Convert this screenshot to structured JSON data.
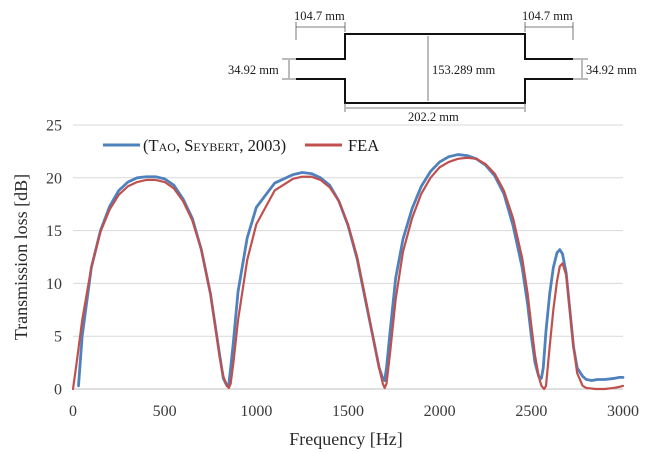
{
  "diagram": {
    "dims": {
      "inlet_length": "104.7 mm",
      "outlet_length": "104.7 mm",
      "inlet_height": "34.92 mm",
      "outlet_height": "34.92 mm",
      "chamber_height": "153.289 mm",
      "chamber_length": "202.2 mm"
    }
  },
  "chart_data": {
    "type": "line",
    "xlabel": "Frequency [Hz]",
    "ylabel": "Transmission loss [dB]",
    "xlim": [
      0,
      3000
    ],
    "ylim": [
      0,
      25
    ],
    "xticks": [
      "0",
      "500",
      "1000",
      "1500",
      "2000",
      "2500",
      "3000"
    ],
    "yticks": [
      "0",
      "5",
      "10",
      "15",
      "20",
      "25"
    ],
    "grid": "horizontal",
    "legend_position": "top-left",
    "legend_label_1_parts": {
      "open": "(",
      "author1_first": "T",
      "author1_rest": "AO",
      "sep": ", ",
      "author2_first": "S",
      "author2_rest": "EYBERT",
      "year": ", 2003)"
    },
    "series": [
      {
        "name": "(Tao, Seybert, 2003)",
        "color": "#4f81bd",
        "x": [
          30,
          50,
          100,
          150,
          200,
          250,
          300,
          350,
          400,
          450,
          500,
          550,
          600,
          650,
          700,
          750,
          780,
          800,
          820,
          840,
          850,
          860,
          875,
          900,
          950,
          1000,
          1100,
          1200,
          1250,
          1300,
          1350,
          1400,
          1450,
          1500,
          1550,
          1600,
          1640,
          1670,
          1690,
          1700,
          1710,
          1730,
          1760,
          1800,
          1850,
          1900,
          1950,
          2000,
          2050,
          2100,
          2150,
          2200,
          2250,
          2300,
          2350,
          2400,
          2450,
          2480,
          2500,
          2520,
          2540,
          2555,
          2565,
          2580,
          2600,
          2620,
          2640,
          2655,
          2670,
          2690,
          2710,
          2730,
          2750,
          2780,
          2800,
          2830,
          2860,
          2900,
          2950,
          2980,
          3000
        ],
        "y": [
          0.3,
          5,
          11.5,
          15,
          17.3,
          18.8,
          19.6,
          20.0,
          20.1,
          20.1,
          19.9,
          19.3,
          18.0,
          16.2,
          13.2,
          9.0,
          5.5,
          3.2,
          1.0,
          0.3,
          0.5,
          2.0,
          4.5,
          9.2,
          14.3,
          17.2,
          19.5,
          20.3,
          20.5,
          20.4,
          20.0,
          19.3,
          17.8,
          15.5,
          12.3,
          8.0,
          4.6,
          2.0,
          1.0,
          0.8,
          2.0,
          5.5,
          10.5,
          14.2,
          17.1,
          19.2,
          20.6,
          21.5,
          22.0,
          22.2,
          22.1,
          21.8,
          21.2,
          20.2,
          18.5,
          15.5,
          11.5,
          8.0,
          5.0,
          2.5,
          1.2,
          1.0,
          2.0,
          5.5,
          9.0,
          11.5,
          12.9,
          13.2,
          12.8,
          11.0,
          7.5,
          4.0,
          2.0,
          1.2,
          0.9,
          0.8,
          0.9,
          0.9,
          1.0,
          1.1,
          1.1
        ]
      },
      {
        "name": "FEA",
        "color": "#c0504d",
        "x": [
          0,
          20,
          50,
          100,
          150,
          200,
          250,
          300,
          350,
          400,
          450,
          500,
          550,
          600,
          650,
          700,
          750,
          780,
          800,
          820,
          840,
          850,
          860,
          875,
          900,
          950,
          1000,
          1100,
          1200,
          1250,
          1300,
          1350,
          1400,
          1450,
          1500,
          1550,
          1600,
          1640,
          1670,
          1690,
          1700,
          1710,
          1730,
          1760,
          1800,
          1850,
          1900,
          1950,
          2000,
          2050,
          2100,
          2150,
          2200,
          2250,
          2300,
          2350,
          2400,
          2450,
          2480,
          2500,
          2520,
          2540,
          2555,
          2570,
          2580,
          2600,
          2620,
          2640,
          2655,
          2670,
          2690,
          2710,
          2730,
          2750,
          2780,
          2800,
          2850,
          2900,
          2950,
          2980,
          3000
        ],
        "y": [
          0.0,
          2.5,
          6.5,
          11.5,
          14.9,
          17.0,
          18.4,
          19.2,
          19.6,
          19.8,
          19.8,
          19.6,
          19.0,
          17.8,
          16.0,
          13.2,
          9.0,
          5.5,
          3.0,
          1.2,
          0.3,
          0.1,
          0.5,
          2.5,
          6.5,
          12.2,
          15.6,
          18.8,
          19.9,
          20.1,
          20.1,
          19.8,
          19.1,
          17.8,
          15.6,
          12.5,
          8.2,
          4.6,
          2.0,
          0.5,
          0.1,
          0.5,
          3.5,
          8.5,
          13.0,
          16.2,
          18.5,
          20.0,
          21.0,
          21.5,
          21.8,
          21.9,
          21.8,
          21.3,
          20.4,
          18.8,
          16.2,
          12.4,
          9.0,
          6.0,
          3.2,
          1.2,
          0.3,
          0.0,
          0.3,
          4.0,
          7.5,
          10.2,
          11.6,
          11.9,
          10.8,
          7.5,
          4.0,
          1.5,
          0.3,
          0.1,
          0.0,
          0.0,
          0.1,
          0.2,
          0.3
        ]
      }
    ]
  }
}
